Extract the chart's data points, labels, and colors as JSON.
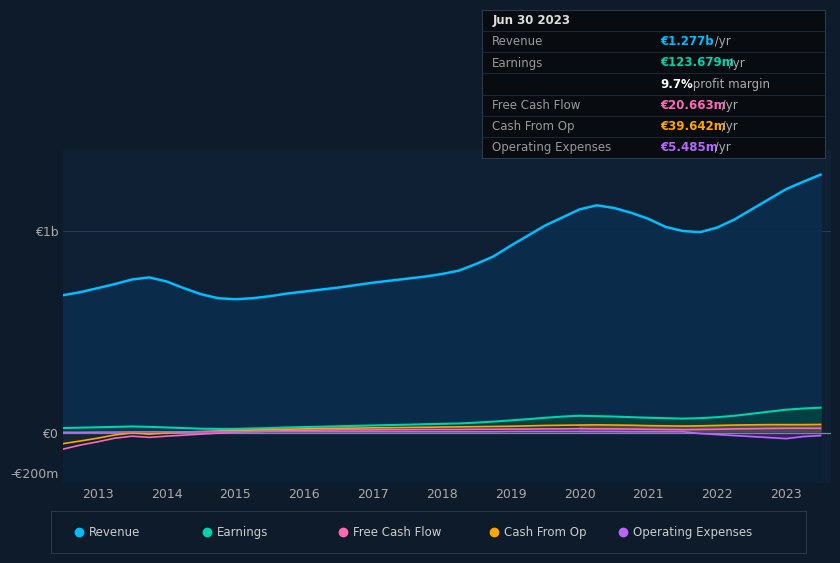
{
  "background_color": "#0d1b2a",
  "plot_bg_color": "#0f2035",
  "ylabel_1b": "€1b",
  "ylabel_0": "€0",
  "ylabel_neg200m": "-€200m",
  "x_tick_labels": [
    "2013",
    "2014",
    "2015",
    "2016",
    "2017",
    "2018",
    "2019",
    "2020",
    "2021",
    "2022",
    "2023"
  ],
  "x_tick_positions": [
    2013,
    2014,
    2015,
    2016,
    2017,
    2018,
    2019,
    2020,
    2021,
    2022,
    2023
  ],
  "ylim_min": -250,
  "ylim_max": 1400,
  "revenue_color": "#00bfff",
  "earnings_color": "#00d4aa",
  "fcf_color": "#ff69b4",
  "cashop_color": "#ffa500",
  "opex_color": "#b866ff",
  "legend_items": [
    {
      "label": "Revenue",
      "color": "#00bfff"
    },
    {
      "label": "Earnings",
      "color": "#00d4aa"
    },
    {
      "label": "Free Cash Flow",
      "color": "#ff69b4"
    },
    {
      "label": "Cash From Op",
      "color": "#ffa500"
    },
    {
      "label": "Operating Expenses",
      "color": "#b866ff"
    }
  ],
  "info_rows": [
    {
      "label": "Jun 30 2023",
      "value": "",
      "label_color": "#dddddd",
      "value_color": "#ffffff",
      "bold_label": true,
      "is_header": true
    },
    {
      "label": "Revenue",
      "value": "€1.277b",
      "suffix": " /yr",
      "label_color": "#999999",
      "value_color": "#00bfff",
      "bold_label": false,
      "is_header": false
    },
    {
      "label": "Earnings",
      "value": "€123.679m",
      "suffix": " /yr",
      "label_color": "#999999",
      "value_color": "#00d4aa",
      "bold_label": false,
      "is_header": false
    },
    {
      "label": "",
      "value": "9.7%",
      "suffix": " profit margin",
      "label_color": "#999999",
      "value_color": "#ffffff",
      "bold_label": false,
      "is_header": false
    },
    {
      "label": "Free Cash Flow",
      "value": "€20.663m",
      "suffix": " /yr",
      "label_color": "#999999",
      "value_color": "#ff69b4",
      "bold_label": false,
      "is_header": false
    },
    {
      "label": "Cash From Op",
      "value": "€39.642m",
      "suffix": " /yr",
      "label_color": "#999999",
      "value_color": "#ffa500",
      "bold_label": false,
      "is_header": false
    },
    {
      "label": "Operating Expenses",
      "value": "€5.485m",
      "suffix": " /yr",
      "label_color": "#999999",
      "value_color": "#b866ff",
      "bold_label": false,
      "is_header": false
    }
  ]
}
